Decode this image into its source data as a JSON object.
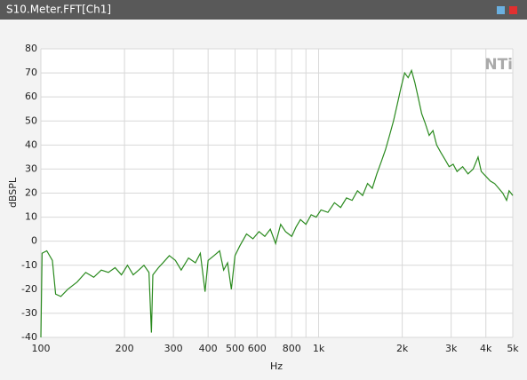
{
  "window": {
    "title": "S10.Meter.FFT[Ch1]",
    "logo": "NTi"
  },
  "chart_data": {
    "type": "line",
    "xscale": "log",
    "grid": true,
    "xlabel": "Hz",
    "ylabel": "dBSPL",
    "xlim": [
      100,
      5000
    ],
    "ylim": [
      -40,
      80
    ],
    "xticks": [
      100,
      200,
      300,
      400,
      500,
      600,
      800,
      {
        "value": 1000,
        "label": "1k"
      },
      {
        "value": 2000,
        "label": "2k"
      },
      {
        "value": 3000,
        "label": "3k"
      },
      {
        "value": 4000,
        "label": "4k"
      },
      {
        "value": 5000,
        "label": "5k"
      }
    ],
    "xgrid": [
      100,
      200,
      300,
      400,
      500,
      600,
      700,
      800,
      900,
      1000,
      2000,
      3000,
      4000,
      5000
    ],
    "yticks": [
      -40,
      -30,
      -20,
      -10,
      0,
      10,
      20,
      30,
      40,
      50,
      60,
      70,
      80
    ],
    "x": [
      100,
      101,
      105,
      110,
      113,
      118,
      125,
      135,
      145,
      155,
      165,
      175,
      185,
      195,
      205,
      215,
      225,
      235,
      245,
      250,
      253,
      265,
      275,
      290,
      305,
      320,
      340,
      360,
      375,
      390,
      400,
      420,
      440,
      455,
      470,
      485,
      500,
      520,
      550,
      580,
      610,
      640,
      670,
      700,
      730,
      760,
      800,
      830,
      860,
      900,
      940,
      980,
      1020,
      1080,
      1140,
      1200,
      1260,
      1320,
      1380,
      1440,
      1500,
      1560,
      1620,
      1680,
      1740,
      1800,
      1860,
      1920,
      1980,
      2040,
      2100,
      2160,
      2220,
      2280,
      2350,
      2420,
      2500,
      2580,
      2660,
      2750,
      2850,
      2950,
      3050,
      3150,
      3300,
      3450,
      3600,
      3750,
      3850,
      4000,
      4150,
      4300,
      4450,
      4600,
      4750,
      4850,
      5000
    ],
    "series": [
      {
        "name": "Ch1",
        "color": "#2a8a1e",
        "values": [
          -40,
          -5,
          -4,
          -8,
          -22,
          -23,
          -20,
          -17,
          -13,
          -15,
          -12,
          -13,
          -11,
          -14,
          -10,
          -14,
          -12,
          -10,
          -13,
          -38,
          -14,
          -11,
          -9,
          -6,
          -8,
          -12,
          -7,
          -9,
          -5,
          -21,
          -8,
          -6,
          -4,
          -12,
          -9,
          -20,
          -6,
          -2,
          3,
          1,
          4,
          2,
          5,
          -1,
          7,
          4,
          2,
          6,
          9,
          7,
          11,
          10,
          13,
          12,
          16,
          14,
          18,
          17,
          21,
          19,
          24,
          22,
          28,
          33,
          38,
          44,
          50,
          57,
          64,
          70,
          68,
          71,
          66,
          60,
          53,
          49,
          44,
          46,
          40,
          37,
          34,
          31,
          32,
          29,
          31,
          28,
          30,
          35,
          29,
          27,
          25,
          24,
          22,
          20,
          17,
          21,
          19
        ]
      }
    ]
  }
}
